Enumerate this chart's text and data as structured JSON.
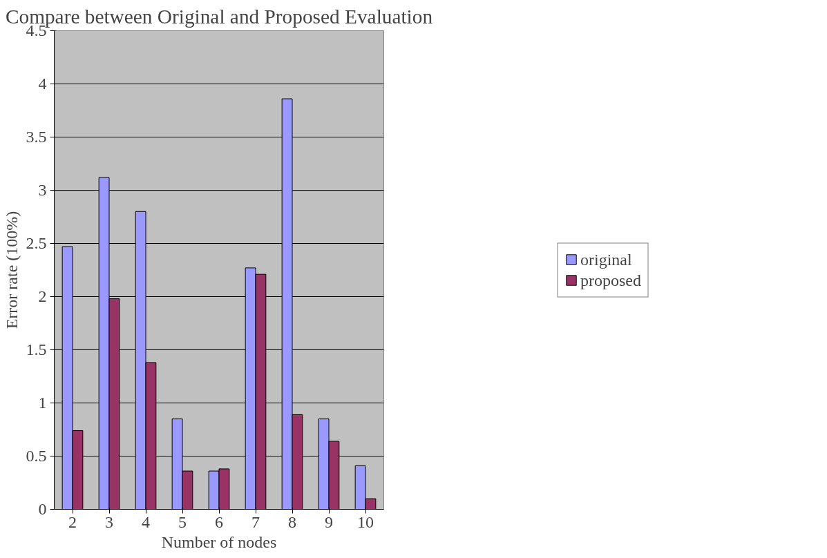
{
  "chart_data": {
    "type": "bar",
    "title": "Compare between Original and Proposed Evaluation",
    "xlabel": "Number of nodes",
    "ylabel": "Error rate (100%)",
    "categories": [
      "2",
      "3",
      "4",
      "5",
      "6",
      "7",
      "8",
      "9",
      "10"
    ],
    "series": [
      {
        "name": "original",
        "color": "#9999ff",
        "values": [
          2.47,
          3.12,
          2.8,
          0.85,
          0.36,
          2.27,
          3.86,
          0.85,
          0.41
        ]
      },
      {
        "name": "proposed",
        "color": "#993366",
        "values": [
          0.74,
          1.98,
          1.38,
          0.36,
          0.38,
          2.21,
          0.89,
          0.64,
          0.1
        ]
      }
    ],
    "ylim": [
      0,
      4.5
    ],
    "yticks": [
      0,
      0.5,
      1,
      1.5,
      2,
      2.5,
      3,
      3.5,
      4,
      4.5
    ],
    "grid": "y",
    "legend": "right"
  }
}
